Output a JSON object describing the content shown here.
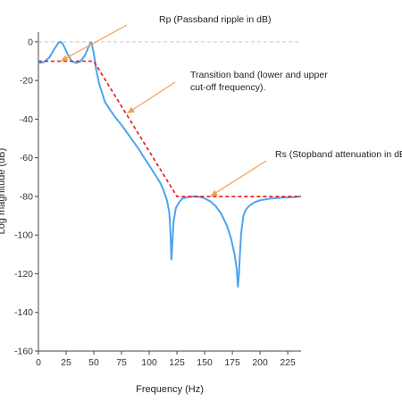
{
  "chart_data": {
    "type": "line",
    "title": "",
    "xlabel": "Frequency (Hz)",
    "ylabel": "Log magnitude (dB)",
    "xlim": [
      0,
      237
    ],
    "ylim": [
      -160,
      5
    ],
    "xticks": [
      0,
      25,
      50,
      75,
      100,
      125,
      150,
      175,
      200,
      225
    ],
    "yticks": [
      0,
      -20,
      -40,
      -60,
      -80,
      -100,
      -120,
      -140,
      -160
    ],
    "grid": false,
    "legend": "none",
    "reference_line": {
      "y": 0,
      "style": "dashed",
      "color": "#c8c8c8"
    },
    "series": [
      {
        "role": "magnitude-response",
        "color": "#4da3f0",
        "style": "solid",
        "x": [
          0,
          5,
          10,
          14,
          18,
          20,
          22,
          26,
          30,
          34,
          38,
          42,
          45,
          47,
          48,
          50,
          52,
          55,
          60,
          65,
          70,
          75,
          80,
          85,
          90,
          95,
          100,
          105,
          110,
          113,
          116,
          118,
          119,
          120,
          121,
          122,
          124,
          127,
          130,
          135,
          140,
          145,
          150,
          155,
          160,
          165,
          170,
          174,
          177,
          179,
          180,
          181,
          182,
          183,
          184,
          185,
          187,
          190,
          195,
          200,
          210,
          220,
          230,
          237
        ],
        "y": [
          -11,
          -10.5,
          -8,
          -4,
          -0.5,
          0,
          -1,
          -6,
          -10,
          -11,
          -10,
          -7,
          -3,
          -0.5,
          -0.5,
          -6,
          -14,
          -22,
          -31,
          -35.5,
          -39.5,
          -43,
          -47,
          -51,
          -55,
          -59.5,
          -64,
          -68.5,
          -73,
          -77,
          -82,
          -88,
          -96,
          -113,
          -103,
          -93,
          -86,
          -83,
          -81,
          -80.3,
          -80,
          -80.2,
          -81,
          -82.5,
          -85,
          -89,
          -95,
          -102,
          -110,
          -118,
          -127,
          -120,
          -108,
          -99,
          -94,
          -90,
          -87,
          -85,
          -83,
          -82,
          -81,
          -80.6,
          -80.3,
          -80
        ]
      },
      {
        "role": "spec-template",
        "color": "#e8141c",
        "style": "dashed",
        "x": [
          0,
          50,
          125,
          237
        ],
        "y": [
          -10,
          -10,
          -80,
          -80
        ]
      }
    ],
    "annotations": [
      {
        "text": "Rp (Passband ripple in dB)",
        "arrow_to": [
          20,
          -10
        ]
      },
      {
        "text": "Transition band (lower and upper",
        "text2": "cut-off frequency).",
        "arrow_to": [
          80,
          -37
        ]
      },
      {
        "text": "Rs (Stopband attenuation in dB)",
        "arrow_to": [
          155,
          -80
        ]
      }
    ],
    "annotation_arrow_color": "#f5a050"
  }
}
